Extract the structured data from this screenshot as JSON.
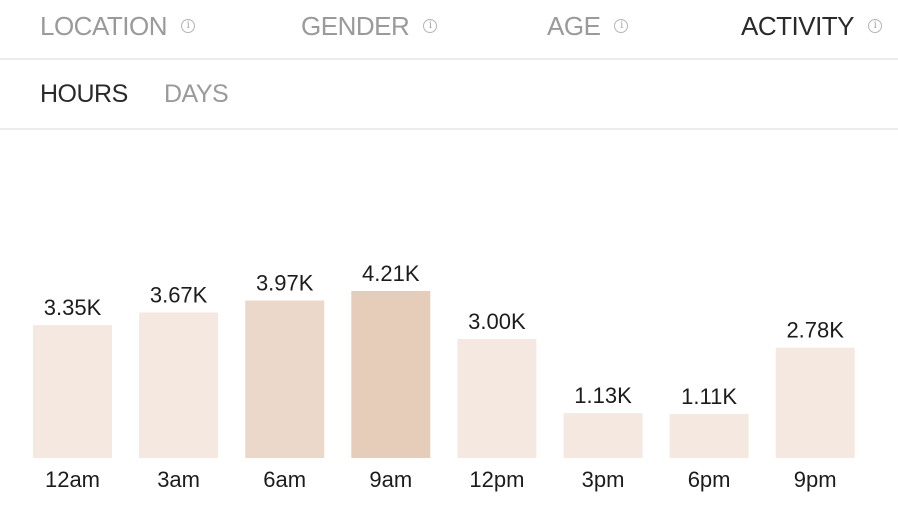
{
  "tabs": [
    {
      "label": "LOCATION",
      "active": false
    },
    {
      "label": "GENDER",
      "active": false
    },
    {
      "label": "AGE",
      "active": false
    },
    {
      "label": "ACTIVITY",
      "active": true
    }
  ],
  "info_icon": {
    "glyph": "i",
    "icon": "info-icon"
  },
  "subtabs": [
    {
      "label": "HOURS",
      "active": true
    },
    {
      "label": "DAYS",
      "active": false
    }
  ],
  "colors": {
    "bar_light": "#f4e8e1",
    "bar_medium": "#ecd8ca",
    "bar_dark": "#e6cdba"
  },
  "chart_data": {
    "type": "bar",
    "categories": [
      "12am",
      "3am",
      "6am",
      "9am",
      "12pm",
      "3pm",
      "6pm",
      "9pm"
    ],
    "values": [
      3.35,
      3.67,
      3.97,
      4.21,
      3.0,
      1.13,
      1.11,
      2.78
    ],
    "value_labels": [
      "3.35K",
      "3.67K",
      "3.97K",
      "4.21K",
      "3.00K",
      "1.13K",
      "1.11K",
      "2.78K"
    ],
    "unit": "K",
    "ylim": [
      0,
      4.21
    ],
    "grid": false,
    "title": "",
    "xlabel": "",
    "ylabel": ""
  }
}
